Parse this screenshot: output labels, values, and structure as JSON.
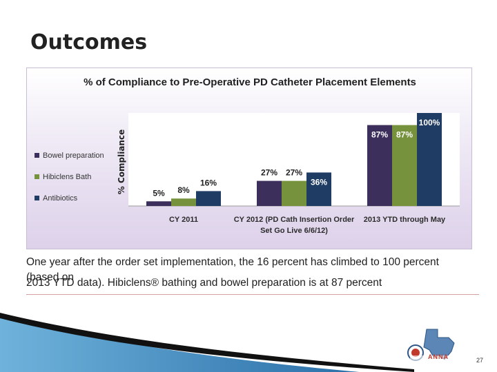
{
  "slide": {
    "title": "Outcomes",
    "caption_line1": "One year after the order set implementation, the 16 percent has climbed to 100 percent (based on",
    "caption_line2": "2013 YTD data). Hibiclens® bathing and bowel preparation is at 87 percent",
    "page_number": "27",
    "logo_text": "ANNA"
  },
  "chart_data": {
    "type": "bar",
    "title": "% of Compliance to Pre-Operative PD Catheter Placement Elements",
    "ylabel": "% Compliance",
    "xlabel": "",
    "ylim": [
      0,
      100
    ],
    "grid": false,
    "legend_position": "left",
    "categories": [
      "CY 2011",
      "CY 2012 (PD Cath Insertion Order Set Go Live 6/6/12)",
      "2013 YTD through May"
    ],
    "category_lines": [
      [
        "CY 2011"
      ],
      [
        "CY 2012 (PD Cath Insertion Order",
        "Set Go Live 6/6/12)"
      ],
      [
        "2013 YTD through May"
      ]
    ],
    "series": [
      {
        "name": "Bowel preparation",
        "values": [
          5,
          27,
          87
        ],
        "labels": [
          "5%",
          "27%",
          "87%"
        ],
        "color": "#3d2f5c"
      },
      {
        "name": "Hibiclens Bath",
        "values": [
          8,
          27,
          87
        ],
        "labels": [
          "8%",
          "27%",
          "87%"
        ],
        "color": "#76923c"
      },
      {
        "name": "Antibiotics",
        "values": [
          16,
          36,
          100
        ],
        "labels": [
          "16%",
          "36%",
          "100%"
        ],
        "color": "#1f3c64"
      }
    ]
  }
}
